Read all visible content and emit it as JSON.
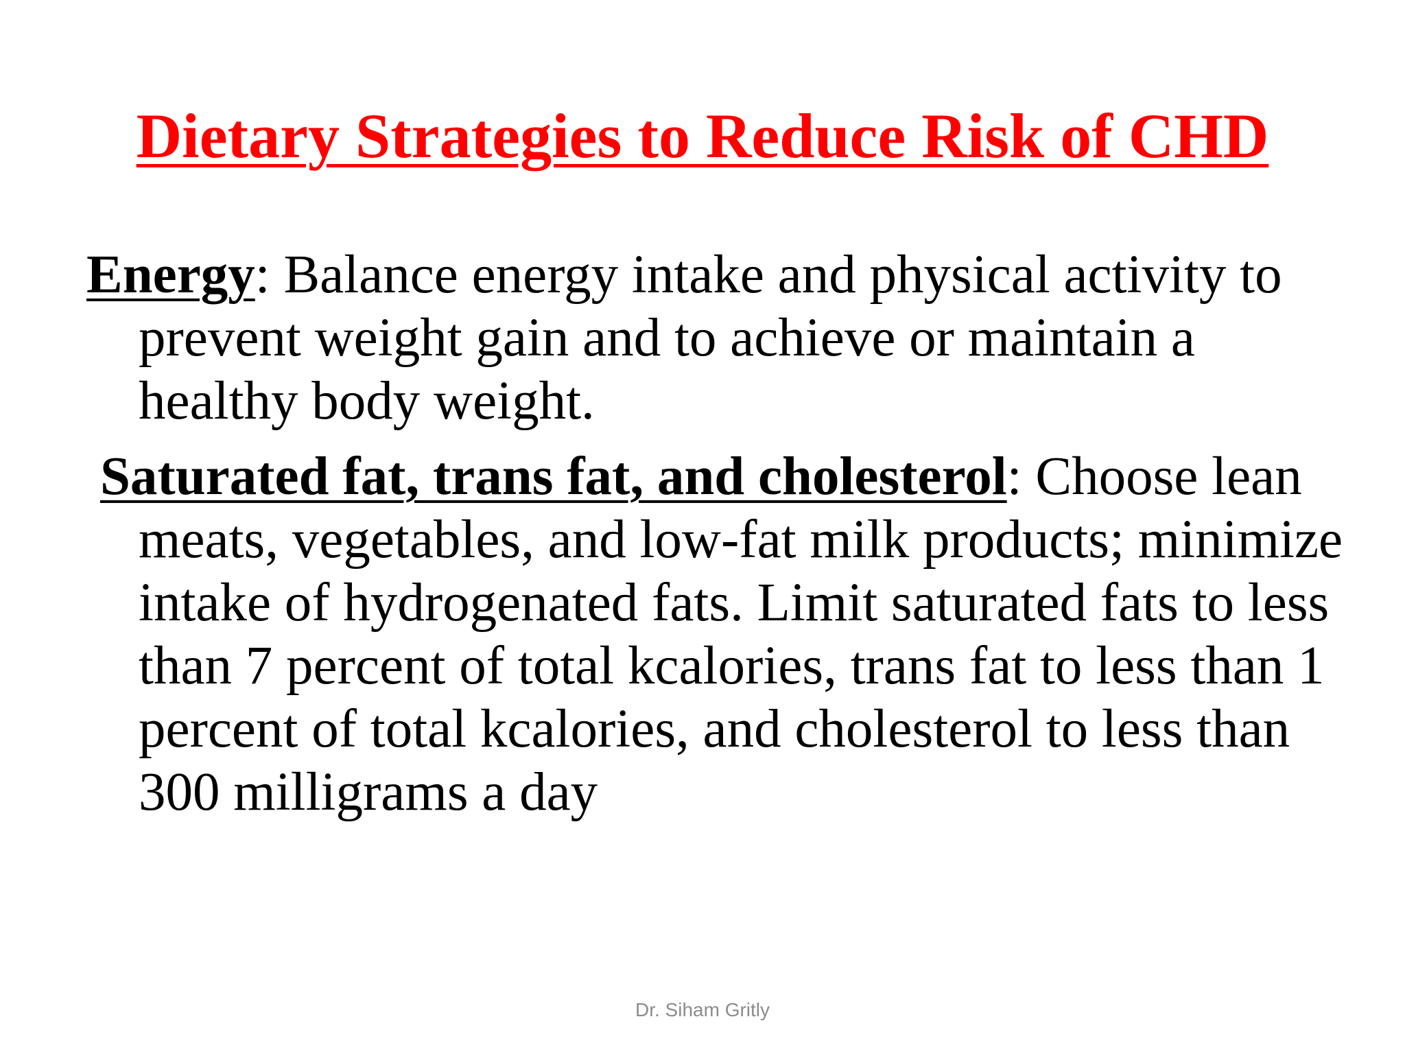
{
  "slide": {
    "title": "Dietary Strategies to Reduce Risk of CHD",
    "title_color": "#ff0000",
    "items": [
      {
        "term": "Energy",
        "text": ": Balance energy intake and physical activity to prevent weight gain and to achieve or maintain a healthy body weight."
      },
      {
        "term": "Saturated fat, trans fat, and cholesterol",
        "text": ": Choose lean meats, vegetables, and low-fat milk products; minimize intake of hydrogenated fats. Limit saturated fats to less than 7 percent of total kcalories, trans fat to less than 1 percent of total kcalories, and cholesterol to less than 300 milligrams a day"
      }
    ],
    "footer": "Dr. Siham Gritly"
  }
}
